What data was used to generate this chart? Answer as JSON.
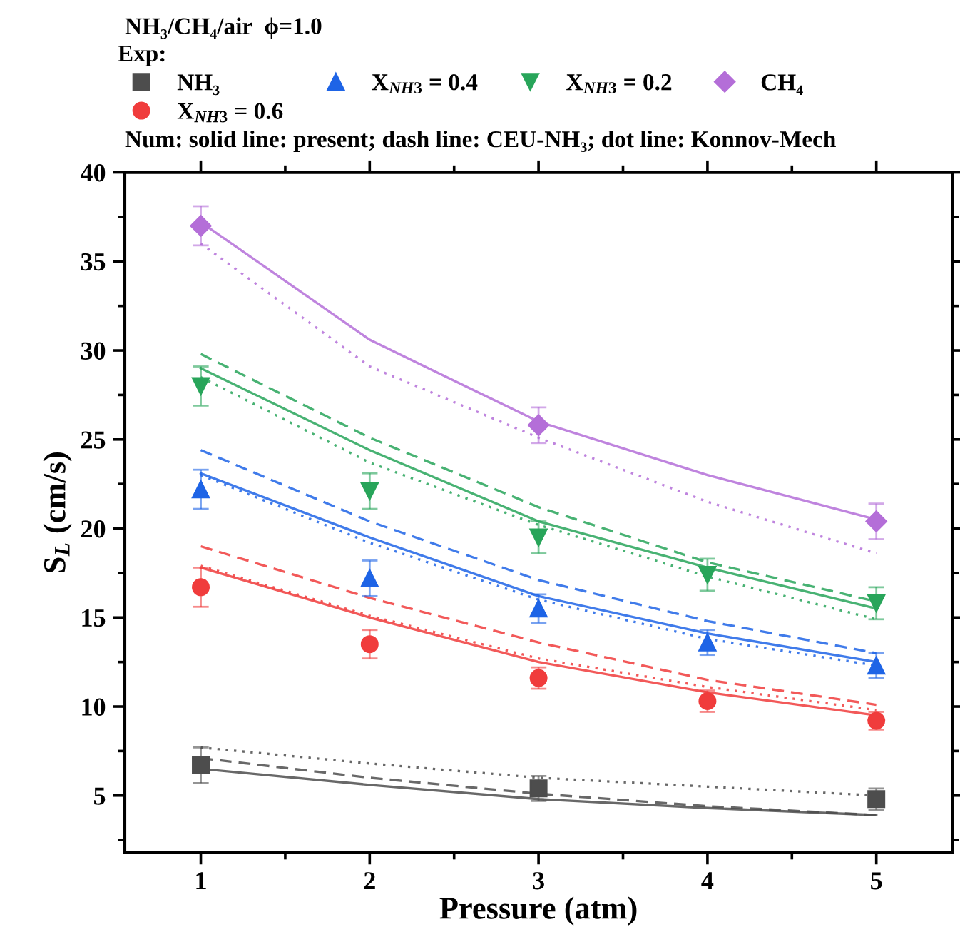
{
  "chart_data": {
    "type": "scatter",
    "title": "NH₃/CH₄/air  ϕ=1.0",
    "legend_title": "Exp:",
    "xlabel": "Pressure (atm)",
    "ylabel": "S$_{L}$ (cm/s)",
    "annotations": [
      "Num: solid line: present; dash line: CEU-NH₃; dot line: Konnov-Mech"
    ],
    "xlim": [
      0.55,
      5.45
    ],
    "xticks": [
      1,
      2,
      3,
      4,
      5
    ],
    "ylim": [
      1.8,
      40
    ],
    "yticks": [
      5,
      10,
      15,
      20,
      25,
      30,
      35,
      40
    ],
    "grid": false,
    "legend": "top",
    "series": [
      {
        "name": "NH₃",
        "marker": "square",
        "color": "#4d4d4d",
        "x": [
          1,
          3,
          5
        ],
        "values": [
          6.7,
          5.4,
          4.8
        ],
        "errors": [
          1.0,
          0.7,
          0.6
        ]
      },
      {
        "name": "X$_{NH3}$ = 0.6",
        "marker": "circle",
        "color": "#f03c3c",
        "x": [
          1,
          2,
          3,
          4,
          5
        ],
        "values": [
          16.7,
          13.5,
          11.6,
          10.3,
          9.2
        ],
        "errors": [
          1.1,
          0.8,
          0.6,
          0.6,
          0.5
        ]
      },
      {
        "name": "X$_{NH3}$ = 0.4",
        "marker": "triangle",
        "color": "#1e64e6",
        "x": [
          1,
          2,
          3,
          4,
          5
        ],
        "values": [
          22.2,
          17.2,
          15.5,
          13.6,
          12.3
        ],
        "errors": [
          1.1,
          1.0,
          0.8,
          0.7,
          0.7
        ]
      },
      {
        "name": "X$_{NH3}$ = 0.2",
        "marker": "triangle_down",
        "color": "#28a55a",
        "x": [
          1,
          2,
          3,
          4,
          5
        ],
        "values": [
          28.0,
          22.1,
          19.5,
          17.4,
          15.8
        ],
        "errors": [
          1.1,
          1.0,
          0.9,
          0.9,
          0.9
        ]
      },
      {
        "name": "CH₄",
        "marker": "diamond",
        "color": "#b46ed8",
        "x": [
          1,
          3,
          5
        ],
        "values": [
          37.0,
          25.8,
          20.4
        ],
        "errors": [
          1.1,
          1.0,
          1.0
        ]
      },
      {
        "type": "line",
        "line_style": "solid",
        "color": "#4d4d4d",
        "x": [
          1,
          2,
          3,
          4,
          5
        ],
        "values": [
          6.5,
          5.6,
          4.8,
          4.3,
          3.9
        ]
      },
      {
        "type": "line",
        "line_style": "dashed",
        "color": "#4d4d4d",
        "x": [
          1,
          2,
          3,
          4,
          5
        ],
        "values": [
          7.1,
          6.0,
          5.1,
          4.4,
          3.9
        ]
      },
      {
        "type": "line",
        "line_style": "dotted",
        "color": "#4d4d4d",
        "x": [
          1,
          2,
          3,
          4,
          5
        ],
        "values": [
          7.7,
          6.8,
          6.0,
          5.5,
          5.0
        ]
      },
      {
        "type": "line",
        "line_style": "solid",
        "color": "#f03c3c",
        "x": [
          1,
          2,
          3,
          4,
          5
        ],
        "values": [
          17.8,
          15.0,
          12.5,
          10.8,
          9.5
        ]
      },
      {
        "type": "line",
        "line_style": "dashed",
        "color": "#f03c3c",
        "x": [
          1,
          2,
          3,
          4,
          5
        ],
        "values": [
          19.0,
          16.1,
          13.6,
          11.5,
          10.1
        ]
      },
      {
        "type": "line",
        "line_style": "dotted",
        "color": "#f03c3c",
        "x": [
          1,
          2,
          3,
          4,
          5
        ],
        "values": [
          17.9,
          15.1,
          12.7,
          11.1,
          9.8
        ]
      },
      {
        "type": "line",
        "line_style": "solid",
        "color": "#1e64e6",
        "x": [
          1,
          2,
          3,
          4,
          5
        ],
        "values": [
          23.1,
          19.5,
          16.2,
          14.1,
          12.5
        ]
      },
      {
        "type": "line",
        "line_style": "dashed",
        "color": "#1e64e6",
        "x": [
          1,
          2,
          3,
          4,
          5
        ],
        "values": [
          24.4,
          20.4,
          17.1,
          14.8,
          13.0
        ]
      },
      {
        "type": "line",
        "line_style": "dotted",
        "color": "#1e64e6",
        "x": [
          1,
          2,
          3,
          4,
          5
        ],
        "values": [
          23.0,
          19.2,
          16.0,
          13.8,
          12.3
        ]
      },
      {
        "type": "line",
        "line_style": "solid",
        "color": "#28a55a",
        "x": [
          1,
          2,
          3,
          4,
          5
        ],
        "values": [
          29.0,
          24.4,
          20.4,
          17.8,
          15.5
        ]
      },
      {
        "type": "line",
        "line_style": "dashed",
        "color": "#28a55a",
        "x": [
          1,
          2,
          3,
          4,
          5
        ],
        "values": [
          29.8,
          25.1,
          21.2,
          18.1,
          15.9
        ]
      },
      {
        "type": "line",
        "line_style": "dotted",
        "color": "#28a55a",
        "x": [
          1,
          2,
          3,
          4,
          5
        ],
        "values": [
          28.5,
          23.7,
          20.2,
          17.3,
          14.9
        ]
      },
      {
        "type": "line",
        "line_style": "solid",
        "color": "#b46ed8",
        "x": [
          1,
          2,
          3,
          4,
          5
        ],
        "values": [
          37.2,
          30.6,
          26.0,
          23.0,
          20.5
        ]
      },
      {
        "type": "line",
        "line_style": "dotted",
        "color": "#b46ed8",
        "x": [
          1,
          2,
          3,
          4,
          5
        ],
        "values": [
          36.0,
          29.1,
          25.1,
          21.5,
          18.6
        ]
      }
    ]
  }
}
